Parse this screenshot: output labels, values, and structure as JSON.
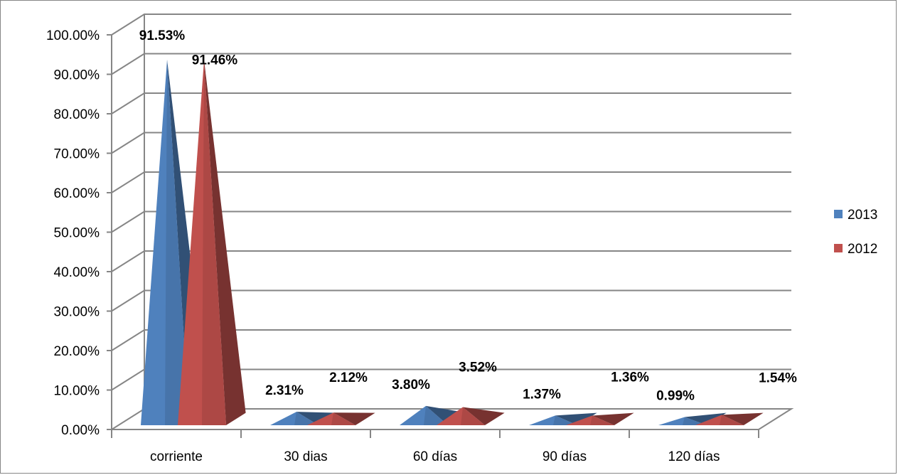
{
  "chart_data": {
    "type": "bar",
    "style": "3d-pyramid",
    "categories": [
      "corriente",
      "30 dias",
      "60 días",
      "90 días",
      "120 días"
    ],
    "series": [
      {
        "name": "2013",
        "values": [
          91.53,
          2.31,
          3.8,
          1.37,
          0.99
        ],
        "labels": [
          "91.53%",
          "2.31%",
          "3.80%",
          "1.37%",
          "0.99%"
        ],
        "color": "#4F81BD"
      },
      {
        "name": "2012",
        "values": [
          91.46,
          2.12,
          3.52,
          1.36,
          1.54
        ],
        "labels": [
          "91.46%",
          "2.12%",
          "3.52%",
          "1.36%",
          "1.54%"
        ],
        "color": "#C0504D"
      }
    ],
    "y_ticks": [
      "0.00%",
      "10.00%",
      "20.00%",
      "30.00%",
      "40.00%",
      "50.00%",
      "60.00%",
      "70.00%",
      "80.00%",
      "90.00%",
      "100.00%"
    ],
    "ylim": [
      0,
      100
    ],
    "grid": true,
    "legend_position": "right",
    "title": "",
    "xlabel": "",
    "ylabel": ""
  }
}
